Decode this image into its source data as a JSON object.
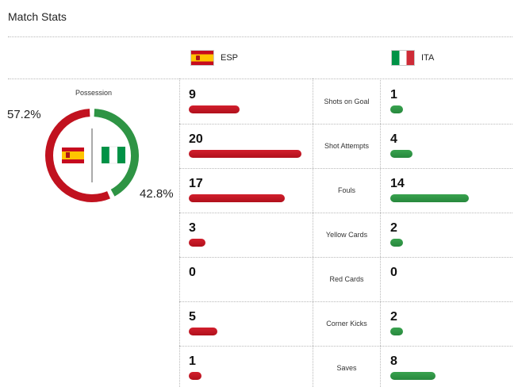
{
  "title": "Match Stats",
  "teams": {
    "home": {
      "code": "ESP",
      "flag": "spain-flag",
      "color": "#c1121f"
    },
    "away": {
      "code": "ITA",
      "flag": "italy-flag",
      "color": "#2e9444"
    }
  },
  "possession": {
    "label": "Possession",
    "home_pct": "57.2%",
    "away_pct": "42.8%",
    "home_value": 57.2,
    "away_value": 42.8
  },
  "stats": [
    {
      "label": "Shots on Goal",
      "home": "9",
      "away": "1",
      "home_value": 9,
      "away_value": 1
    },
    {
      "label": "Shot Attempts",
      "home": "20",
      "away": "4",
      "home_value": 20,
      "away_value": 4
    },
    {
      "label": "Fouls",
      "home": "17",
      "away": "14",
      "home_value": 17,
      "away_value": 14
    },
    {
      "label": "Yellow Cards",
      "home": "3",
      "away": "2",
      "home_value": 3,
      "away_value": 2
    },
    {
      "label": "Red Cards",
      "home": "0",
      "away": "0",
      "home_value": 0,
      "away_value": 0
    },
    {
      "label": "Corner Kicks",
      "home": "5",
      "away": "2",
      "home_value": 5,
      "away_value": 2
    },
    {
      "label": "Saves",
      "home": "1",
      "away": "8",
      "home_value": 1,
      "away_value": 8
    }
  ]
}
